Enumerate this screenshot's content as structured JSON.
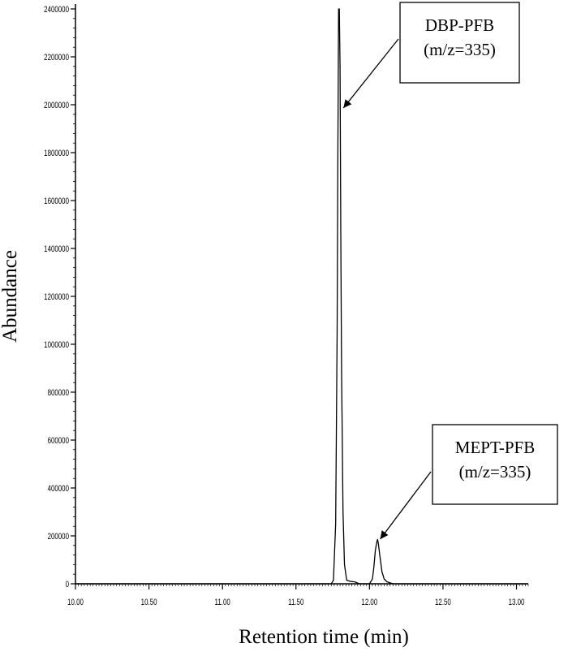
{
  "chart_data": {
    "type": "line",
    "title": "",
    "xlabel": "Retention time (min)",
    "ylabel": "Abundance",
    "xlim": [
      10.0,
      13.08
    ],
    "ylim": [
      0,
      2400000
    ],
    "x_ticks": [
      10.0,
      10.5,
      11.0,
      11.5,
      12.0,
      12.5,
      13.0
    ],
    "x_tick_labels": [
      "10.00",
      "10.50",
      "11.00",
      "11.50",
      "12.00",
      "12.50",
      "13.00"
    ],
    "y_ticks": [
      0,
      200000,
      400000,
      600000,
      800000,
      1000000,
      1200000,
      1400000,
      1600000,
      1800000,
      2000000,
      2200000,
      2400000
    ],
    "y_tick_labels": [
      "0",
      "200000",
      "400000",
      "600000",
      "800000",
      "1000000",
      "1200000",
      "1400000",
      "1600000",
      "1800000",
      "2000000",
      "2200000",
      "2400000"
    ],
    "grid": false,
    "series": [
      {
        "x": [
          10.0,
          11.74,
          11.755,
          11.77,
          11.78,
          11.785,
          11.79,
          11.795,
          11.8,
          11.805,
          11.81,
          11.82,
          11.83,
          11.845,
          11.87,
          11.9,
          11.93,
          12.0,
          12.02,
          12.03,
          12.04,
          12.05,
          12.055,
          12.06,
          12.07,
          12.085,
          12.1,
          12.12,
          12.16,
          12.2,
          13.08
        ],
        "y": [
          0,
          0,
          15000,
          250000,
          1050000,
          1800000,
          2400000,
          2400000,
          2150000,
          1450000,
          900000,
          300000,
          80000,
          15000,
          10000,
          8000,
          0,
          0,
          20000,
          70000,
          140000,
          175000,
          185000,
          170000,
          120000,
          50000,
          20000,
          8000,
          0,
          0,
          0
        ]
      }
    ],
    "annotations": [
      {
        "line1": "DBP-PFB",
        "line2": "(m/z=335)",
        "points_to": [
          11.79,
          2000000
        ]
      },
      {
        "line1": "MEPT-PFB",
        "line2": "(m/z=335)",
        "points_to": [
          12.04,
          200000
        ]
      }
    ]
  }
}
